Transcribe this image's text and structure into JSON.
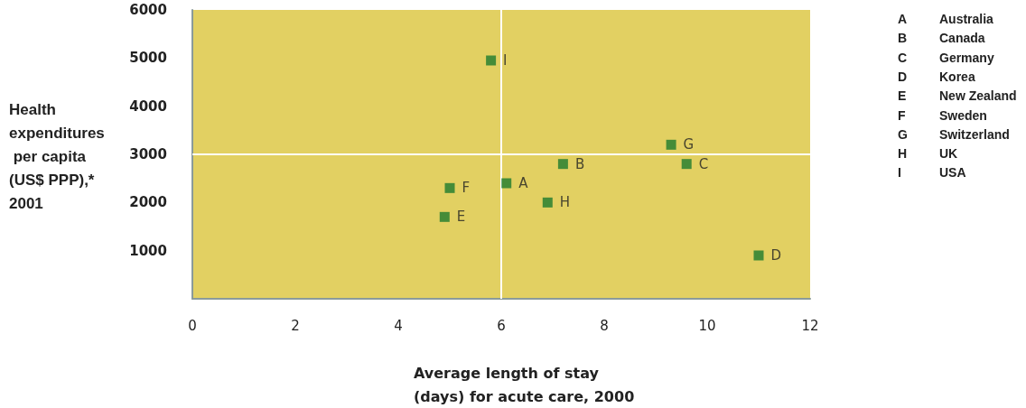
{
  "chart_data": {
    "type": "scatter",
    "xlabel": "Average length of stay (days) for acute care, 2000",
    "ylabel": "Health expenditures per capita (US$ PPP),* 2001",
    "series": [
      {
        "color": "#1e7a2e",
        "x": [
          6.1,
          7.2,
          9.6,
          11.0,
          4.9,
          5.0,
          9.3,
          6.9,
          5.8
        ],
        "values": [
          2400,
          2800,
          2800,
          900,
          1700,
          2300,
          3200,
          2000,
          4950
        ],
        "value_labels": [
          "A",
          "B",
          "C",
          "D",
          "E",
          "F",
          "G",
          "H",
          "I"
        ]
      }
    ],
    "xlim": [
      0,
      12
    ],
    "xticks": [
      0,
      2,
      4,
      6,
      8,
      10,
      12
    ],
    "ylim": [
      0,
      6000
    ],
    "yticks": [
      1000,
      2000,
      3000,
      4000,
      5000,
      6000
    ],
    "ref_lines": [
      {
        "axis": "x",
        "value": 6,
        "color": "#ffffff"
      },
      {
        "axis": "y",
        "value": 3000,
        "color": "#ffffff"
      }
    ],
    "annotations": [
      "A Australia",
      "B Canada",
      "C Germany",
      "D Korea",
      "E New Zealand",
      "F Sweden",
      "G Switzerland",
      "H UK",
      "I USA"
    ],
    "grid": false,
    "marker": "square"
  }
}
